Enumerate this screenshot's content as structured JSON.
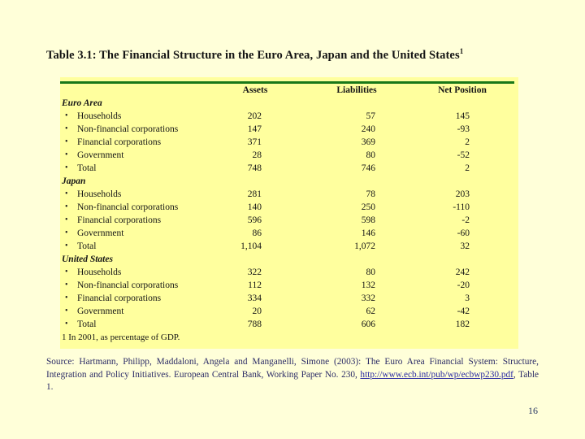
{
  "slide": {
    "title": "Table 3.1: The Financial Structure in the Euro Area, Japan and the United States",
    "title_superscript": "1",
    "page_number": "16"
  },
  "table": {
    "bullet": "•",
    "columns": {
      "assets": "Assets",
      "liabilities": "Liabilities",
      "net": "Net Position"
    },
    "sections": [
      {
        "name": "Euro Area",
        "rows": [
          {
            "label": "Households",
            "assets": "202",
            "liabilities": "57",
            "net": "145"
          },
          {
            "label": "Non-financial corporations",
            "assets": "147",
            "liabilities": "240",
            "net": "-93"
          },
          {
            "label": "Financial corporations",
            "assets": "371",
            "liabilities": "369",
            "net": "2"
          },
          {
            "label": "Government",
            "assets": "28",
            "liabilities": "80",
            "net": "-52"
          },
          {
            "label": "Total",
            "assets": "748",
            "liabilities": "746",
            "net": "2"
          }
        ]
      },
      {
        "name": "Japan",
        "rows": [
          {
            "label": "Households",
            "assets": "281",
            "liabilities": "78",
            "net": "203"
          },
          {
            "label": "Non-financial corporations",
            "assets": "140",
            "liabilities": "250",
            "net": "-110"
          },
          {
            "label": "Financial corporations",
            "assets": "596",
            "liabilities": "598",
            "net": "-2"
          },
          {
            "label": "Government",
            "assets": "86",
            "liabilities": "146",
            "net": "-60"
          },
          {
            "label": "Total",
            "assets": "1,104",
            "liabilities": "1,072",
            "net": "32"
          }
        ]
      },
      {
        "name": "United States",
        "rows": [
          {
            "label": "Households",
            "assets": "322",
            "liabilities": "80",
            "net": "242"
          },
          {
            "label": "Non-financial corporations",
            "assets": "112",
            "liabilities": "132",
            "net": "-20"
          },
          {
            "label": "Financial corporations",
            "assets": "334",
            "liabilities": "332",
            "net": "3"
          },
          {
            "label": "Government",
            "assets": "20",
            "liabilities": "62",
            "net": "-42"
          },
          {
            "label": "Total",
            "assets": "788",
            "liabilities": "606",
            "net": "182"
          }
        ]
      }
    ],
    "footnote": "1 In 2001, as percentage of GDP."
  },
  "source": {
    "prefix": "Source: Hartmann, Philipp, Maddaloni, Angela and Manganelli, Simone (2003): The Euro Area Financial System: Structure, Integration and Policy Initiatives. European Central Bank, Working Paper No. 230, ",
    "link": "http://www.ecb.int/pub/wp/ecbwp230.pdf",
    "suffix": ", Table 1."
  }
}
